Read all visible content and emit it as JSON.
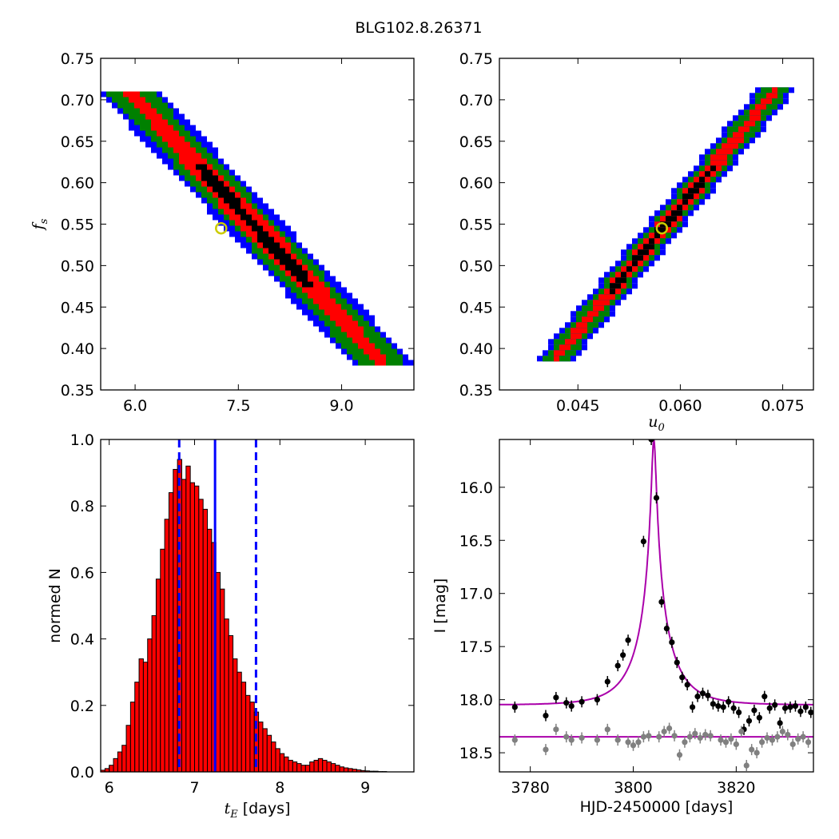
{
  "figure": {
    "title": "BLG102.8.26371"
  },
  "chart_data": [
    {
      "id": "fs_vs_tE",
      "type": "heatmap",
      "xlabel": "",
      "ylabel": "f_s",
      "xlim": [
        5.5,
        10.05
      ],
      "ylim": [
        0.35,
        0.75
      ],
      "xticks": [
        6.0,
        7.5,
        9.0
      ],
      "xtick_labels": [
        "6.0",
        "7.5",
        "9.0"
      ],
      "yticks": [
        0.35,
        0.4,
        0.45,
        0.5,
        0.55,
        0.6,
        0.65,
        0.7,
        0.75
      ],
      "ytick_labels": [
        "0.35",
        "0.40",
        "0.45",
        "0.50",
        "0.55",
        "0.60",
        "0.65",
        "0.70",
        "0.75"
      ],
      "confidence_colors": {
        "1sigma": "#000000",
        "2sigma": "#ff0000",
        "3sigma": "#008000",
        "4sigma": "#0000ff"
      },
      "region": {
        "x_start": 5.95,
        "x_end": 9.6,
        "y_start": 0.71,
        "y_end": 0.385,
        "widths_x": [
          0.11,
          0.23,
          0.34,
          0.46
        ]
      },
      "best_fit": {
        "x": 7.25,
        "y": 0.545,
        "color": "#cccc00"
      }
    },
    {
      "id": "fs_vs_u0",
      "type": "heatmap",
      "xlabel": "u_0",
      "ylabel": "",
      "xlim": [
        0.0335,
        0.0795
      ],
      "ylim": [
        0.35,
        0.75
      ],
      "xticks": [
        0.045,
        0.06,
        0.075
      ],
      "xtick_labels": [
        "0.045",
        "0.060",
        "0.075"
      ],
      "yticks": [
        0.35,
        0.4,
        0.45,
        0.5,
        0.55,
        0.6,
        0.65,
        0.7,
        0.75
      ],
      "ytick_labels": [
        "0.35",
        "0.40",
        "0.45",
        "0.50",
        "0.55",
        "0.60",
        "0.65",
        "0.70",
        "0.75"
      ],
      "confidence_colors": {
        "1sigma": "#000000",
        "2sigma": "#ff0000",
        "3sigma": "#008000",
        "4sigma": "#0000ff"
      },
      "region": {
        "x_start": 0.0412,
        "x_end": 0.074,
        "y_start": 0.385,
        "y_end": 0.715,
        "widths_x": [
          0.0007,
          0.0014,
          0.0021,
          0.0029
        ]
      },
      "best_fit": {
        "x": 0.0573,
        "y": 0.545,
        "color": "#cccc00"
      }
    },
    {
      "id": "tE_histogram",
      "type": "bar",
      "xlabel": "t_E  [days]",
      "ylabel": "normed N",
      "xlim": [
        5.9,
        9.57
      ],
      "ylim": [
        0.0,
        1.0
      ],
      "xticks": [
        6,
        7,
        8,
        9
      ],
      "xtick_labels": [
        "6",
        "7",
        "8",
        "9"
      ],
      "yticks": [
        0.0,
        0.2,
        0.4,
        0.6,
        0.8,
        1.0
      ],
      "ytick_labels": [
        "0.0",
        "0.2",
        "0.4",
        "0.6",
        "0.8",
        "1.0"
      ],
      "bin_start": 5.9,
      "bin_width": 0.05,
      "values": [
        0.005,
        0.01,
        0.02,
        0.04,
        0.06,
        0.08,
        0.14,
        0.21,
        0.27,
        0.34,
        0.33,
        0.4,
        0.47,
        0.58,
        0.67,
        0.76,
        0.84,
        0.91,
        0.94,
        0.88,
        0.92,
        0.87,
        0.86,
        0.82,
        0.79,
        0.73,
        0.69,
        0.6,
        0.55,
        0.46,
        0.41,
        0.34,
        0.3,
        0.27,
        0.23,
        0.21,
        0.18,
        0.15,
        0.13,
        0.11,
        0.09,
        0.07,
        0.055,
        0.045,
        0.035,
        0.03,
        0.025,
        0.02,
        0.02,
        0.03,
        0.035,
        0.04,
        0.035,
        0.03,
        0.025,
        0.02,
        0.015,
        0.012,
        0.01,
        0.008,
        0.006,
        0.004,
        0.003,
        0.002,
        0.002,
        0.001,
        0.001,
        0.0,
        0.0,
        0.0,
        0.0,
        0.0,
        0.0
      ],
      "bar_color": "#ff0000",
      "median": 7.24,
      "lower": 6.82,
      "upper": 7.72,
      "line_color": "#0000ff"
    },
    {
      "id": "light_curve",
      "type": "scatter",
      "xlabel": "HJD-2450000 [days]",
      "ylabel": "I [mag]",
      "xlim": [
        3774,
        3835
      ],
      "ylim": [
        18.68,
        15.55
      ],
      "xticks": [
        3780,
        3800,
        3820
      ],
      "xtick_labels": [
        "3780",
        "3800",
        "3820"
      ],
      "yticks": [
        16.0,
        16.5,
        17.0,
        17.5,
        18.0,
        18.5
      ],
      "ytick_labels": [
        "16.0",
        "16.5",
        "17.0",
        "17.5",
        "18.0",
        "18.5"
      ],
      "model": {
        "baseline": 18.05,
        "peak": 15.63,
        "t0": 3804.0,
        "u0": 0.0573,
        "tE": 7.25,
        "fs": 0.545,
        "color": "#aa00aa"
      },
      "residual_offset": 18.35,
      "series": [
        {
          "color": "#000000",
          "t": [
            3777,
            3783,
            3785,
            3787,
            3788,
            3790,
            3793,
            3795,
            3797,
            3798,
            3799,
            3802,
            3803.5,
            3804.5,
            3805.5,
            3806.5,
            3807.5,
            3808.5,
            3809.5,
            3810.5,
            3811.5,
            3812.5,
            3813.5,
            3814.5,
            3815.5,
            3816.5,
            3817.5,
            3818.5,
            3819.5,
            3820.5,
            3821.5,
            3822.5,
            3823.5,
            3824.5,
            3825.5,
            3826.5,
            3827.5,
            3828.5,
            3829.5,
            3830.5,
            3831.5,
            3832.5,
            3833.5,
            3834.5
          ],
          "mag": [
            18.07,
            18.15,
            17.98,
            18.03,
            18.06,
            18.02,
            18.0,
            17.83,
            17.68,
            17.58,
            17.44,
            16.51,
            15.55,
            16.1,
            17.08,
            17.33,
            17.46,
            17.65,
            17.79,
            17.86,
            18.07,
            17.97,
            17.94,
            17.96,
            18.04,
            18.06,
            18.07,
            18.02,
            18.08,
            18.12,
            18.28,
            18.2,
            18.1,
            18.17,
            17.97,
            18.08,
            18.05,
            18.22,
            18.08,
            18.07,
            18.06,
            18.11,
            18.07,
            18.12
          ]
        },
        {
          "color": "#808080",
          "t": [
            3777,
            3783,
            3785,
            3787,
            3788,
            3790,
            3793,
            3795,
            3797,
            3799,
            3800,
            3801,
            3802,
            3803,
            3805,
            3806,
            3807,
            3808,
            3809,
            3810,
            3811,
            3812,
            3813,
            3814,
            3815,
            3817,
            3818,
            3819,
            3820,
            3821,
            3822,
            3823,
            3824,
            3825,
            3826,
            3827,
            3828,
            3829,
            3830,
            3831,
            3832,
            3833,
            3834
          ],
          "mag": [
            18.38,
            18.47,
            18.28,
            18.35,
            18.38,
            18.36,
            18.38,
            18.28,
            18.38,
            18.4,
            18.43,
            18.4,
            18.35,
            18.34,
            18.35,
            18.3,
            18.27,
            18.34,
            18.52,
            18.4,
            18.35,
            18.32,
            18.36,
            18.33,
            18.34,
            18.38,
            18.4,
            18.37,
            18.42,
            18.3,
            18.62,
            18.47,
            18.5,
            18.4,
            18.36,
            18.38,
            18.35,
            18.3,
            18.33,
            18.42,
            18.37,
            18.35,
            18.4
          ]
        }
      ]
    }
  ]
}
